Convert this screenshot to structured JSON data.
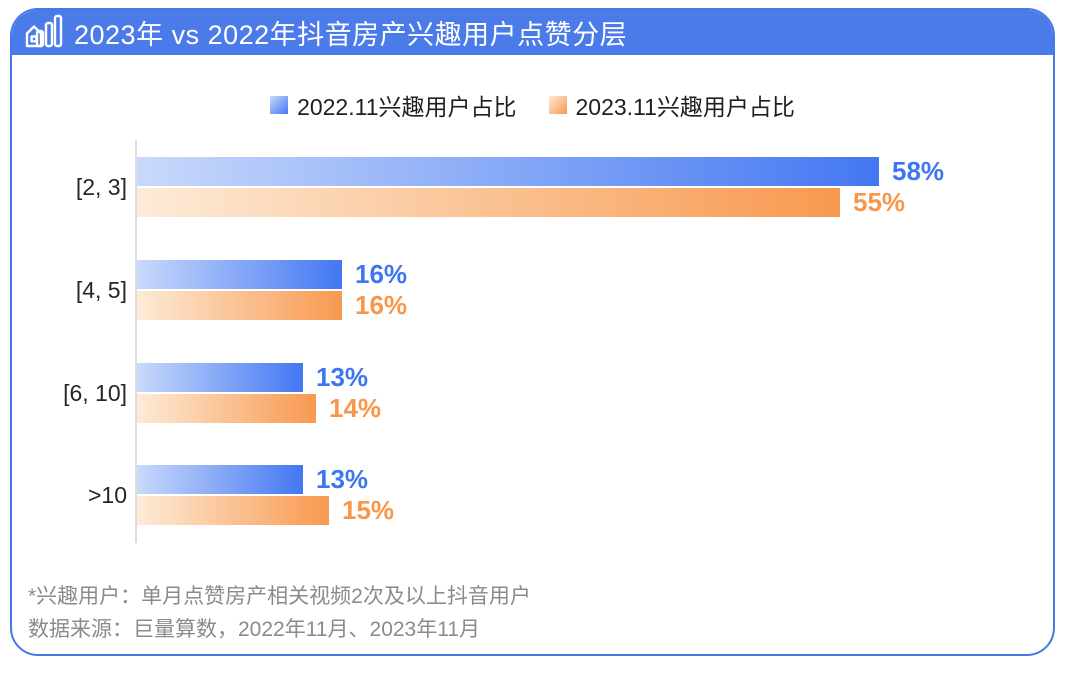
{
  "header": {
    "title": "2023年 vs 2022年抖音房产兴趣用户点赞分层"
  },
  "chart_data": {
    "type": "bar",
    "orientation": "horizontal",
    "title": "2023年 vs 2022年抖音房产兴趣用户点赞分层",
    "categories": [
      "[2, 3]",
      "[4, 5]",
      "[6, 10]",
      ">10"
    ],
    "series": [
      {
        "name": "2022.11兴趣用户占比",
        "values": [
          58,
          16,
          13,
          13
        ],
        "color": "#4377F2",
        "color_light": "#C9D9FB",
        "label_color": "#3D76F1"
      },
      {
        "name": "2023.11兴趣用户占比",
        "values": [
          55,
          16,
          14,
          15
        ],
        "color": "#F8994F",
        "color_light": "#FDEBD8",
        "label_color": "#F8964A"
      }
    ],
    "value_unit": "%",
    "xlim": [
      0,
      62
    ],
    "grid": false,
    "legend_position": "top-center"
  },
  "footer": {
    "note1": "*兴趣用户：单月点赞房产相关视频2次及以上抖音用户",
    "note2": "数据来源：巨量算数，2022年11月、2023年11月"
  },
  "colors": {
    "header_bg": "#4A7BE8",
    "card_border": "#4679E8",
    "axis": "#DCDCDC",
    "category_text": "#262626",
    "legend_text": "#1F1F1F",
    "footer_text": "#8B8B8B"
  }
}
